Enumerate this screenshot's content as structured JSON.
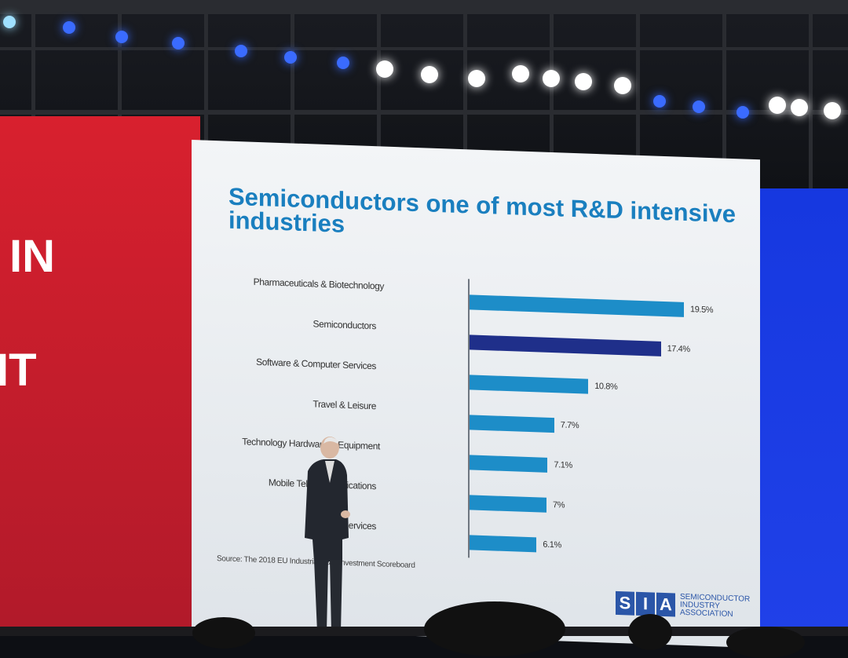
{
  "backdrop": {
    "left_panel_lines": [
      "IN",
      "IT"
    ]
  },
  "slide": {
    "title": "Semiconductors one of most R&D intensive industries",
    "source": "Source: The 2018 EU Industrial R&D Investment Scoreboard",
    "logo": {
      "letters": [
        "S",
        "I",
        "A"
      ],
      "lines": [
        "SEMICONDUCTOR",
        "INDUSTRY",
        "ASSOCIATION"
      ]
    }
  },
  "colors": {
    "bar": "#1d8dc8",
    "highlight": "#1f2f8a",
    "title": "#1a7fbf"
  },
  "chart_data": {
    "type": "bar",
    "orientation": "horizontal",
    "title": "Semiconductors one of most R&D intensive industries",
    "categories": [
      "Pharmaceuticals & Biotechnology",
      "Semiconductors",
      "Software & Computer Services",
      "Travel & Leisure",
      "Technology Hardware & Equipment",
      "Mobile Telecommunications",
      "Financial Services"
    ],
    "values": [
      19.5,
      17.4,
      10.8,
      7.7,
      7.1,
      7.0,
      6.1
    ],
    "labels": [
      "19.5%",
      "17.4%",
      "10.8%",
      "7.7%",
      "7.1%",
      "7%",
      "6.1%"
    ],
    "highlight_index": 1,
    "xlabel": "",
    "ylabel": "",
    "xlim": [
      0,
      20
    ],
    "grid": false
  }
}
